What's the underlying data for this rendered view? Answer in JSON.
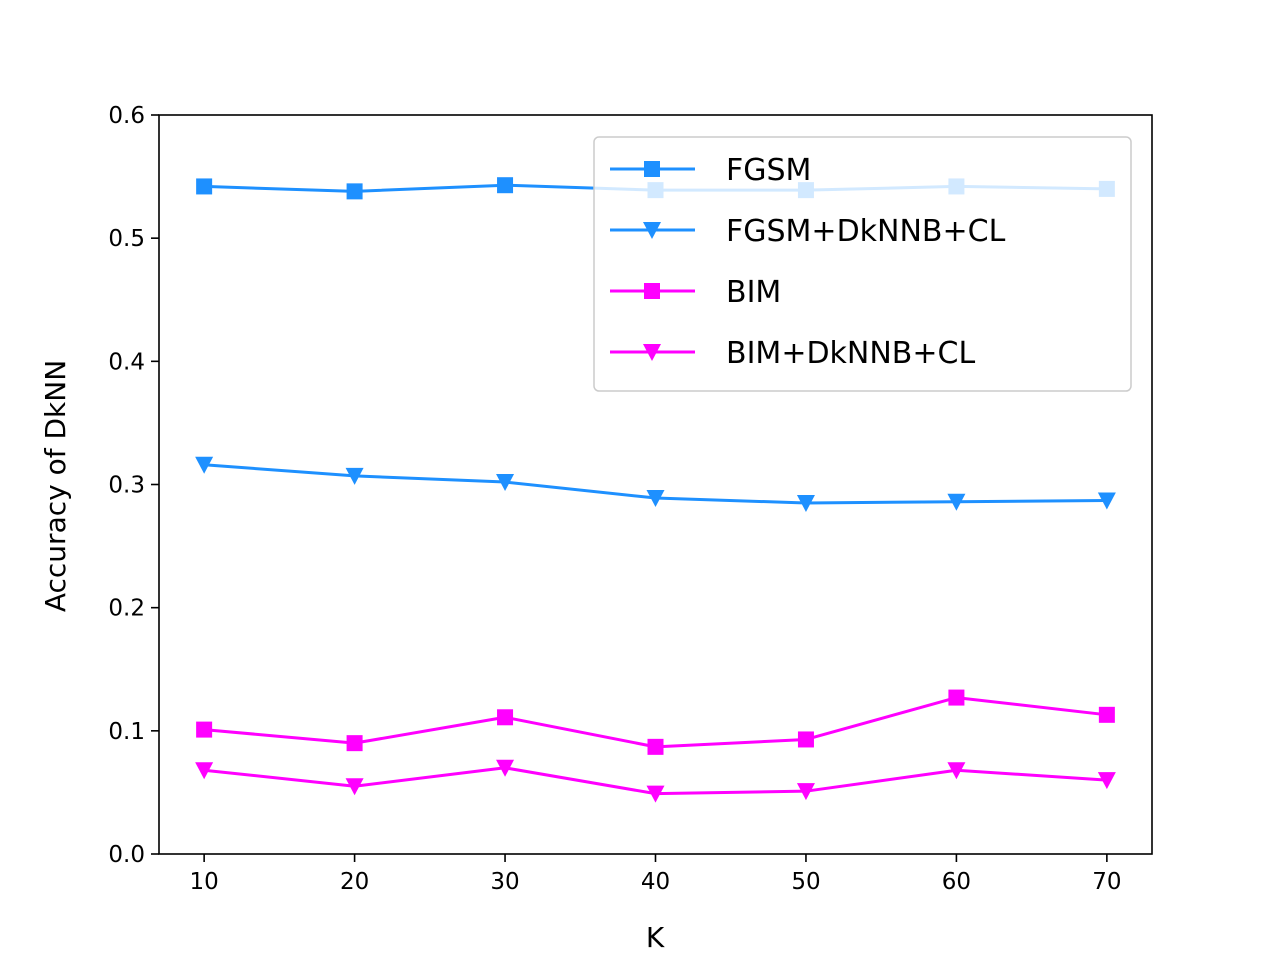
{
  "chart_data": {
    "type": "line",
    "xlabel": "K",
    "ylabel": "Accuracy of DkNN",
    "x": [
      10,
      20,
      30,
      40,
      50,
      60,
      70
    ],
    "xlim": [
      7,
      73
    ],
    "ylim": [
      0.0,
      0.6
    ],
    "xticks": [
      "10",
      "20",
      "30",
      "40",
      "50",
      "60",
      "70"
    ],
    "yticks": [
      "0.0",
      "0.1",
      "0.2",
      "0.3",
      "0.4",
      "0.5",
      "0.6"
    ],
    "grid": false,
    "legend_position": "top-right",
    "series": [
      {
        "name": "FGSM",
        "color": "#1e90ff",
        "marker": "square",
        "values": [
          0.542,
          0.538,
          0.543,
          0.539,
          0.539,
          0.542,
          0.54
        ]
      },
      {
        "name": "FGSM+DkNNB+CL",
        "color": "#1e90ff",
        "marker": "triangle-down",
        "values": [
          0.316,
          0.307,
          0.302,
          0.289,
          0.285,
          0.286,
          0.287
        ]
      },
      {
        "name": "BIM",
        "color": "#ff00ff",
        "marker": "square",
        "values": [
          0.101,
          0.09,
          0.111,
          0.087,
          0.093,
          0.127,
          0.113
        ]
      },
      {
        "name": "BIM+DkNNB+CL",
        "color": "#ff00ff",
        "marker": "triangle-down",
        "values": [
          0.068,
          0.055,
          0.07,
          0.049,
          0.051,
          0.068,
          0.06
        ]
      }
    ]
  }
}
